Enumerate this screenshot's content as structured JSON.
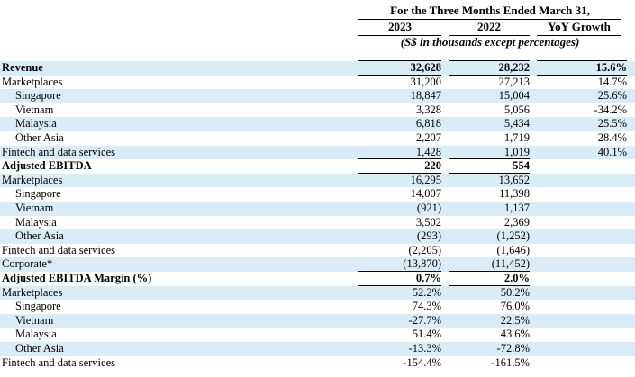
{
  "header": {
    "period": "For the Three Months Ended March 31,",
    "col_2023": "2023",
    "col_2022": "2022",
    "col_yoy": "YoY Growth",
    "note": "(S$ in thousands except percentages)"
  },
  "rows": [
    {
      "label": "Revenue",
      "v2023": "32,628",
      "v2022": "28,232",
      "yoy": "15.6%"
    },
    {
      "label": "Marketplaces",
      "v2023": "31,200",
      "v2022": "27,213",
      "yoy": "14.7%"
    },
    {
      "label": "Singapore",
      "v2023": "18,847",
      "v2022": "15,004",
      "yoy": "25.6%"
    },
    {
      "label": "Vietnam",
      "v2023": "3,328",
      "v2022": "5,056",
      "yoy": "-34.2%"
    },
    {
      "label": "Malaysia",
      "v2023": "6,818",
      "v2022": "5,434",
      "yoy": "25.5%"
    },
    {
      "label": "Other Asia",
      "v2023": "2,207",
      "v2022": "1,719",
      "yoy": "28.4%"
    },
    {
      "label": "Fintech and data services",
      "v2023": "1,428",
      "v2022": "1,019",
      "yoy": "40.1%"
    },
    {
      "label": "Adjusted EBITDA",
      "v2023": "220",
      "v2022": "554",
      "yoy": ""
    },
    {
      "label": "Marketplaces",
      "v2023": "16,295",
      "v2022": "13,652",
      "yoy": ""
    },
    {
      "label": "Singapore",
      "v2023": "14,007",
      "v2022": "11,398",
      "yoy": ""
    },
    {
      "label": "Vietnam",
      "v2023": "(921)",
      "v2022": "1,137",
      "yoy": ""
    },
    {
      "label": "Malaysia",
      "v2023": "3,502",
      "v2022": "2,369",
      "yoy": ""
    },
    {
      "label": "Other Asia",
      "v2023": "(293)",
      "v2022": "(1,252)",
      "yoy": ""
    },
    {
      "label": "Fintech and data services",
      "v2023": "(2,205)",
      "v2022": "(1,646)",
      "yoy": ""
    },
    {
      "label": "Corporate*",
      "v2023": "(13,870)",
      "v2022": "(11,452)",
      "yoy": ""
    },
    {
      "label": "Adjusted EBITDA Margin (%)",
      "v2023": "0.7%",
      "v2022": "2.0%",
      "yoy": ""
    },
    {
      "label": "Marketplaces",
      "v2023": "52.2%",
      "v2022": "50.2%",
      "yoy": ""
    },
    {
      "label": "Singapore",
      "v2023": "74.3%",
      "v2022": "76.0%",
      "yoy": ""
    },
    {
      "label": "Vietnam",
      "v2023": "-27.7%",
      "v2022": "22.5%",
      "yoy": ""
    },
    {
      "label": "Malaysia",
      "v2023": "51.4%",
      "v2022": "43.6%",
      "yoy": ""
    },
    {
      "label": "Other Asia",
      "v2023": "-13.3%",
      "v2022": "-72.8%",
      "yoy": ""
    },
    {
      "label": "Fintech and data services",
      "v2023": "-154.4%",
      "v2022": "-161.5%",
      "yoy": ""
    }
  ]
}
